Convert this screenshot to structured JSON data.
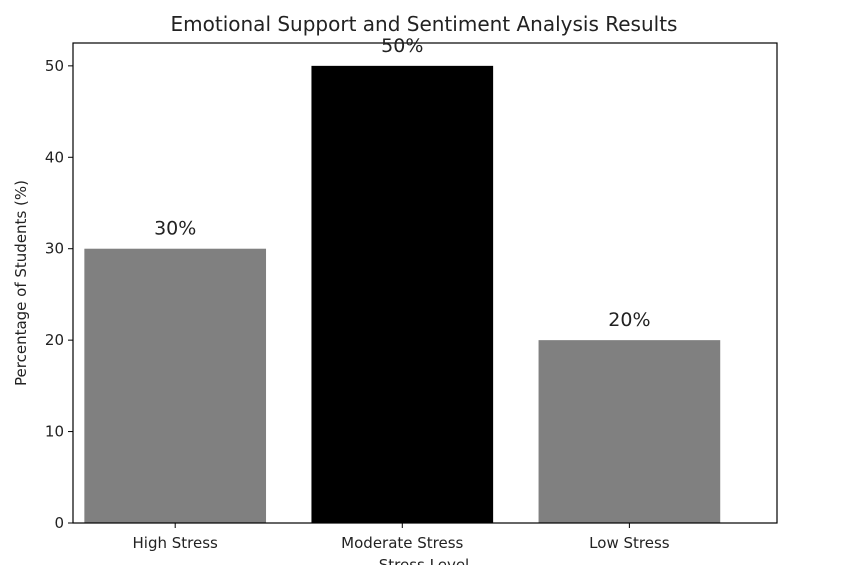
{
  "chart_data": {
    "type": "bar",
    "title": "Emotional Support and Sentiment Analysis Results",
    "xlabel": "Stress Level",
    "ylabel": "Percentage of Students (%)",
    "categories": [
      "High Stress",
      "Moderate Stress",
      "Low Stress"
    ],
    "values": [
      30,
      50,
      20
    ],
    "data_labels": [
      "30%",
      "50%",
      "20%"
    ],
    "colors": [
      "#808080",
      "#000000",
      "#808080"
    ],
    "ylim": [
      0,
      52.5
    ],
    "yticks": [
      0,
      10,
      20,
      30,
      40,
      50
    ],
    "grid": false,
    "legend": "none"
  }
}
